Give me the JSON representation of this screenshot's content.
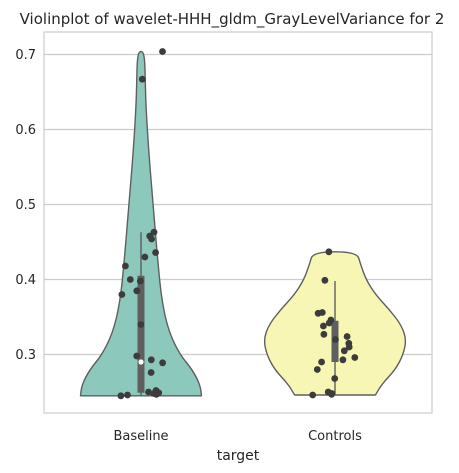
{
  "chart_data": {
    "type": "violin",
    "title": "Violinplot of wavelet-HHH_gldm_GrayLevelVariance for 2",
    "xlabel": "target",
    "ylabel": "",
    "ylim": [
      0.222,
      0.73
    ],
    "yticks": [
      0.3,
      0.4,
      0.5,
      0.6,
      0.7
    ],
    "ytick_labels": [
      "0.3",
      "0.4",
      "0.5",
      "0.6",
      "0.7"
    ],
    "grid": "horizontal",
    "categories": [
      "Baseline",
      "Controls"
    ],
    "series": [
      {
        "category": "Baseline",
        "color": "#8dc8bc",
        "min": 0.245,
        "q1": 0.249,
        "median": 0.29,
        "q3": 0.405,
        "whisker_low": 0.245,
        "whisker_high": 0.463,
        "max": 0.704,
        "density": [
          [
            0.245,
            0.78
          ],
          [
            0.26,
            0.76
          ],
          [
            0.28,
            0.66
          ],
          [
            0.3,
            0.5
          ],
          [
            0.33,
            0.36
          ],
          [
            0.37,
            0.27
          ],
          [
            0.42,
            0.22
          ],
          [
            0.47,
            0.18
          ],
          [
            0.52,
            0.14
          ],
          [
            0.57,
            0.1
          ],
          [
            0.62,
            0.07
          ],
          [
            0.66,
            0.055
          ],
          [
            0.69,
            0.05
          ],
          [
            0.704,
            0.03
          ]
        ],
        "points": [
          0.704,
          0.667,
          0.463,
          0.458,
          0.454,
          0.436,
          0.43,
          0.418,
          0.4,
          0.398,
          0.385,
          0.38,
          0.34,
          0.298,
          0.293,
          0.289,
          0.276,
          0.252,
          0.25,
          0.249,
          0.248,
          0.247,
          0.246,
          0.245
        ]
      },
      {
        "category": "Controls",
        "color": "#f7f6b5",
        "min": 0.246,
        "q1": 0.29,
        "median": 0.32,
        "q3": 0.345,
        "whisker_low": 0.246,
        "whisker_high": 0.398,
        "max": 0.437,
        "density": [
          [
            0.246,
            0.52
          ],
          [
            0.26,
            0.6
          ],
          [
            0.28,
            0.78
          ],
          [
            0.3,
            0.88
          ],
          [
            0.32,
            0.92
          ],
          [
            0.34,
            0.85
          ],
          [
            0.36,
            0.7
          ],
          [
            0.38,
            0.52
          ],
          [
            0.4,
            0.4
          ],
          [
            0.42,
            0.33
          ],
          [
            0.437,
            0.28
          ]
        ],
        "points": [
          0.437,
          0.399,
          0.356,
          0.355,
          0.346,
          0.342,
          0.338,
          0.327,
          0.324,
          0.32,
          0.315,
          0.31,
          0.305,
          0.296,
          0.293,
          0.29,
          0.28,
          0.268,
          0.25,
          0.248,
          0.247,
          0.246
        ]
      }
    ]
  }
}
